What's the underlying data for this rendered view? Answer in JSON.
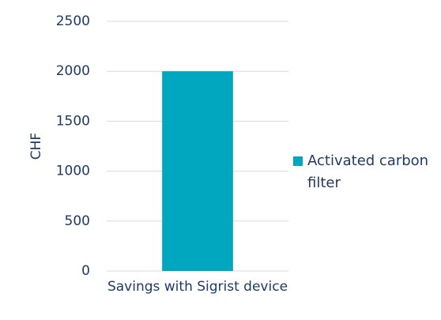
{
  "chart_data": {
    "type": "bar",
    "y_label": "CHF",
    "categories": [
      "Savings with Sigrist device"
    ],
    "series": [
      {
        "name": "Activated carbon filter",
        "color": "#00a7be",
        "values": [
          2000
        ]
      }
    ],
    "ylim": [
      0,
      2500
    ],
    "yticks": [
      0,
      500,
      1000,
      1500,
      2000,
      2500
    ],
    "grid": true,
    "legend": "right"
  }
}
